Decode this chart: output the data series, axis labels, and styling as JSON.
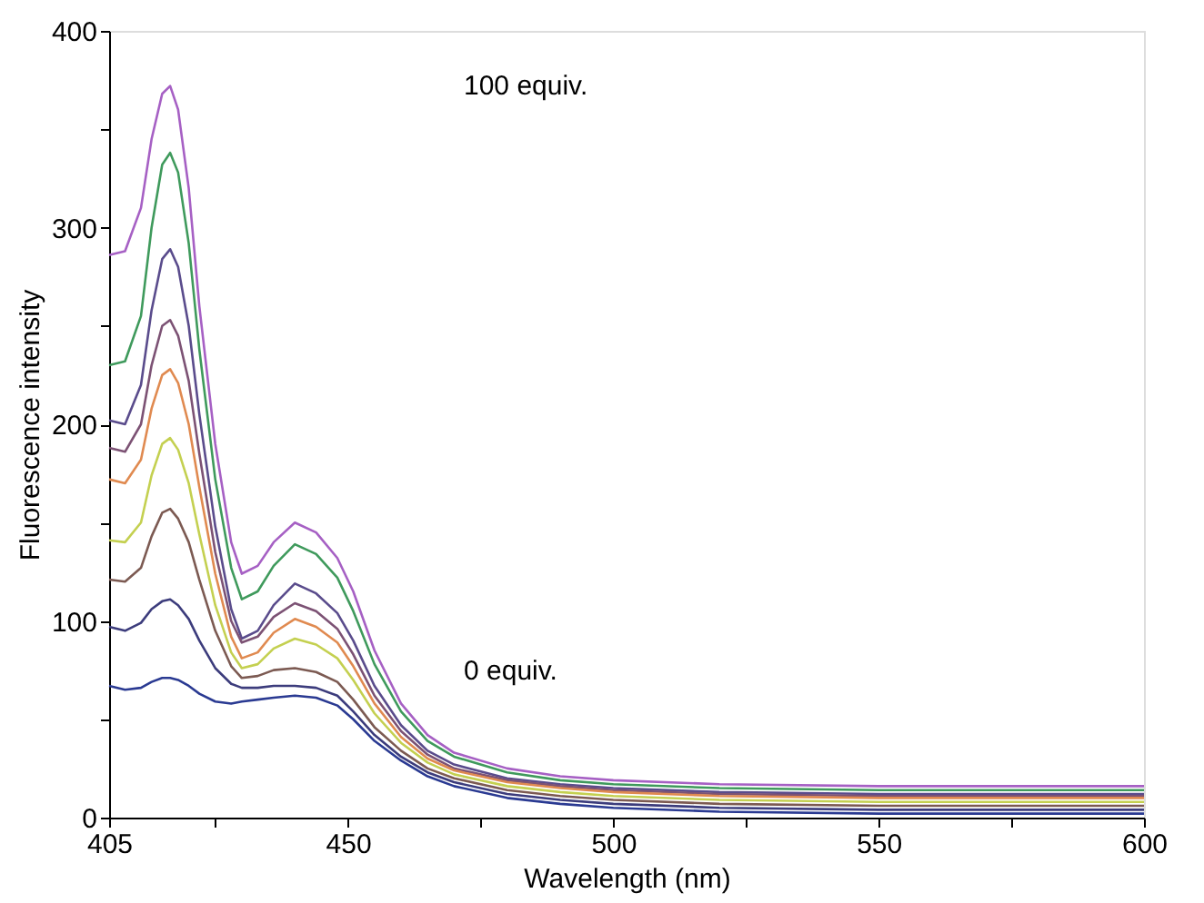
{
  "chart_data": {
    "type": "line",
    "xlabel": "Wavelength (nm)",
    "ylabel": "Fluorescence intensity",
    "x": [
      405,
      408,
      411,
      413,
      415,
      416.5,
      418,
      420,
      422,
      425,
      428,
      430,
      433,
      436,
      440,
      444,
      448,
      451,
      455,
      460,
      465,
      470,
      480,
      490,
      500,
      520,
      550,
      575,
      600
    ],
    "series": [
      {
        "color": "#a660c4",
        "values": [
          286,
          288,
          310,
          345,
          368,
          372,
          360,
          320,
          260,
          190,
          140,
          124,
          128,
          140,
          150,
          145,
          132,
          115,
          85,
          58,
          42,
          33,
          25,
          21,
          19,
          17,
          16,
          16,
          16
        ]
      },
      {
        "color": "#3f9a5c",
        "values": [
          230,
          232,
          255,
          300,
          332,
          338,
          328,
          292,
          238,
          172,
          127,
          111,
          115,
          128,
          139,
          134,
          122,
          105,
          78,
          54,
          39,
          31,
          23,
          19,
          17,
          15,
          14,
          14,
          14
        ]
      },
      {
        "color": "#5a4c8c",
        "values": [
          202,
          200,
          220,
          258,
          284,
          289,
          280,
          250,
          205,
          148,
          106,
          91,
          95,
          108,
          119,
          114,
          104,
          90,
          67,
          47,
          34,
          27,
          20,
          17,
          15,
          13,
          12,
          12,
          12
        ]
      },
      {
        "color": "#7c5274",
        "values": [
          188,
          186,
          200,
          230,
          250,
          253,
          245,
          222,
          185,
          135,
          100,
          89,
          92,
          102,
          109,
          105,
          96,
          83,
          62,
          44,
          32,
          25,
          19,
          16,
          14,
          12,
          11,
          11,
          11
        ]
      },
      {
        "color": "#e08a50",
        "values": [
          172,
          170,
          182,
          208,
          225,
          228,
          221,
          200,
          168,
          124,
          92,
          81,
          84,
          94,
          101,
          97,
          89,
          77,
          58,
          41,
          30,
          24,
          18,
          15,
          13,
          11,
          10,
          10,
          10
        ]
      },
      {
        "color": "#c4d050",
        "values": [
          141,
          140,
          150,
          174,
          190,
          193,
          187,
          170,
          144,
          108,
          84,
          76,
          78,
          86,
          91,
          88,
          81,
          70,
          53,
          38,
          28,
          22,
          16,
          13,
          11,
          9,
          8,
          8,
          8
        ]
      },
      {
        "color": "#7c5a52",
        "values": [
          121,
          120,
          127,
          143,
          155,
          157,
          152,
          140,
          121,
          95,
          77,
          71,
          72,
          75,
          76,
          74,
          69,
          60,
          46,
          34,
          25,
          20,
          14,
          11,
          9,
          7,
          6,
          6,
          6
        ]
      },
      {
        "color": "#3c3c7c",
        "values": [
          97,
          95,
          99,
          106,
          110,
          111,
          108,
          101,
          90,
          76,
          68,
          66,
          66,
          67,
          67,
          66,
          62,
          54,
          42,
          31,
          23,
          18,
          12,
          9,
          7,
          5,
          4,
          4,
          4
        ]
      },
      {
        "color": "#2a3a92",
        "values": [
          67,
          65,
          66,
          69,
          71,
          71,
          70,
          67,
          63,
          59,
          58,
          59,
          60,
          61,
          62,
          61,
          57,
          50,
          39,
          29,
          21,
          16,
          10,
          7,
          5,
          3,
          2,
          2,
          2
        ]
      }
    ],
    "xlim": [
      405,
      600
    ],
    "xticks": [
      405,
      {
        "value": 425,
        "label": null
      },
      450,
      {
        "value": 475,
        "label": null
      },
      500,
      {
        "value": 525,
        "label": null
      },
      550,
      {
        "value": 575,
        "label": null
      },
      600
    ],
    "ylim": [
      0,
      400
    ],
    "yticks": [
      0,
      {
        "value": 50,
        "label": null
      },
      100,
      {
        "value": 150,
        "label": null
      },
      200,
      {
        "value": 250,
        "label": null
      },
      300,
      {
        "value": 350,
        "label": null
      },
      400
    ],
    "annotations": [
      "0 equiv.",
      "100 equiv."
    ],
    "grid": false,
    "marker": "none",
    "line_style": "solid"
  }
}
